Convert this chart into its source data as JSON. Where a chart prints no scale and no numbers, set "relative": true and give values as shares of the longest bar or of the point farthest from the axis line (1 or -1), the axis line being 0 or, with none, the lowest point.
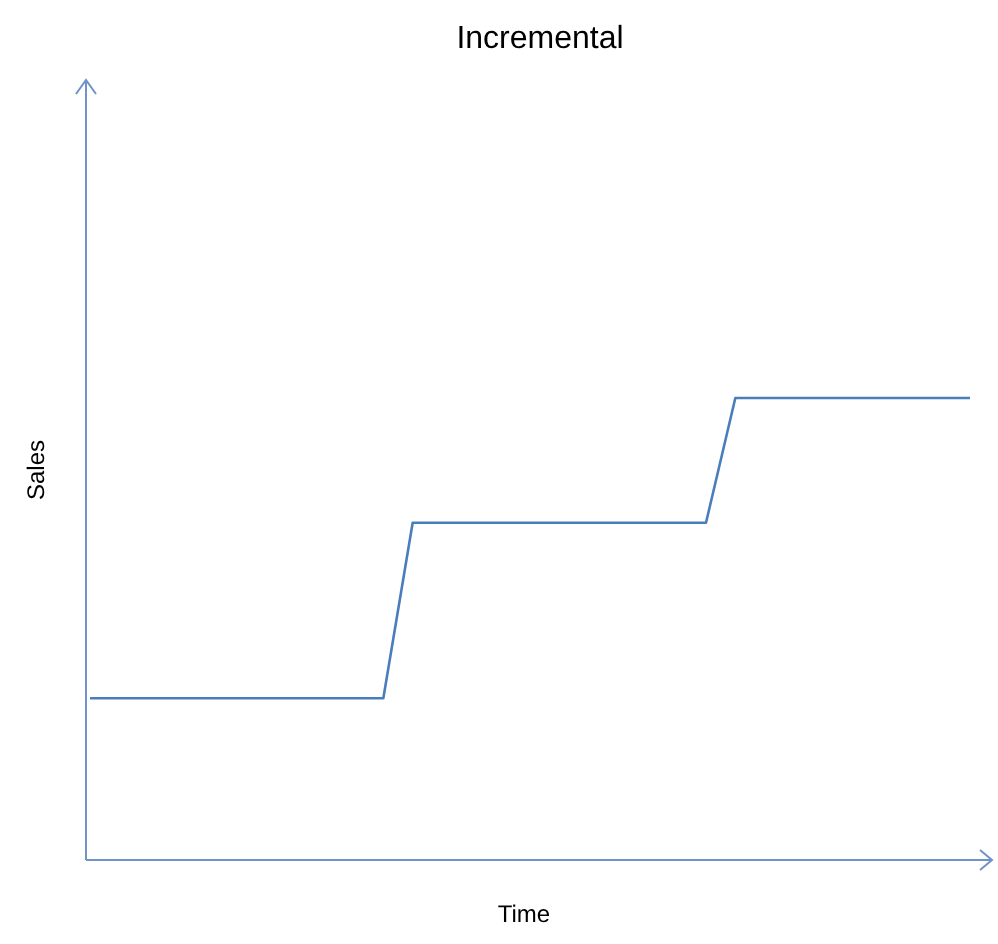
{
  "chart_data": {
    "type": "line",
    "title": "Incremental",
    "xlabel": "Time",
    "ylabel": "Sales",
    "relative": true,
    "categories": [
      null,
      null,
      null,
      null,
      null,
      null,
      null,
      null,
      null,
      null,
      null,
      null,
      null,
      null,
      null,
      null,
      null,
      null,
      null,
      null,
      null,
      null,
      null,
      null,
      null,
      null,
      null,
      null,
      null,
      null,
      null
    ],
    "series": [
      {
        "color": "#4a7ebb",
        "values": [
          0.35,
          null,
          null,
          null,
          null,
          null,
          null,
          null,
          null,
          null,
          0.35,
          0.73,
          null,
          null,
          null,
          null,
          null,
          null,
          null,
          null,
          null,
          0.73,
          1,
          null,
          null,
          null,
          null,
          null,
          null,
          null,
          1
        ]
      }
    ]
  }
}
